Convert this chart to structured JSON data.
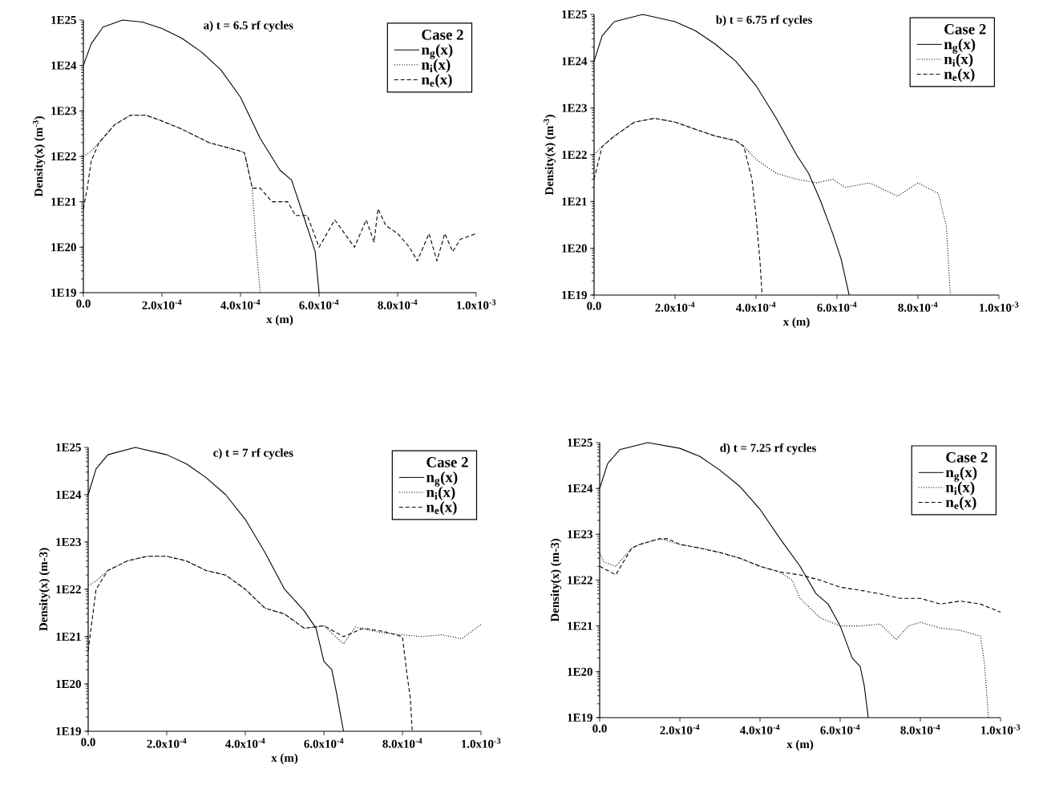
{
  "chart_data": [
    {
      "type": "line",
      "title": "a) t = 6.5 rf cycles",
      "xlabel": "x (m)",
      "ylabel": "Density(x)  (m$^{-3}$)",
      "legend_title": "Case 2",
      "legend": "top right",
      "log": "y",
      "xlim": [
        0,
        0.001
      ],
      "ylim": [
        1e+19,
        1e+25
      ],
      "xticks": [
        {
          "value": 0,
          "label": "0.0"
        },
        {
          "value": 0.0002,
          "label": "2.0x10$^{-4}$"
        },
        {
          "value": 0.0004,
          "label": "4.0x10$^{-4}$"
        },
        {
          "value": 0.0006,
          "label": "6.0x10$^{-4}$"
        },
        {
          "value": 0.0008,
          "label": "8.0x10$^{-4}$"
        },
        {
          "value": 0.001,
          "label": "1.0x10$^{-3}$"
        }
      ],
      "yticks": [
        {
          "value": 1e+19,
          "label": "1E19"
        },
        {
          "value": 1e+20,
          "label": "1E20"
        },
        {
          "value": 1e+21,
          "label": "1E21"
        },
        {
          "value": 1e+22,
          "label": "1E22"
        },
        {
          "value": 1e+23,
          "label": "1E23"
        },
        {
          "value": 1e+24,
          "label": "1E24"
        },
        {
          "value": 1e+25,
          "label": "1E25"
        }
      ],
      "series": [
        {
          "name": "n$_{g}$(x)",
          "color": "#000000",
          "line_style": "solid",
          "x": [
            0,
            2e-05,
            5e-05,
            0.0001,
            0.00015,
            0.0002,
            0.00025,
            0.0003,
            0.00035,
            0.0004,
            0.00045,
            0.0005,
            0.00053,
            0.00056,
            0.00058,
            0.00059,
            0.0006
          ],
          "values": [
            1e+24,
            3e+24,
            7e+24,
            1e+25,
            9e+24,
            6.5e+24,
            4e+24,
            2e+24,
            8e+23,
            2e+23,
            2.5e+22,
            5e+21,
            3e+21,
            5e+20,
            1.5e+20,
            8e+19,
            1e+19
          ]
        },
        {
          "name": "n$_{i}$(x)",
          "color": "#000000",
          "line_style": "dotted",
          "x": [
            0,
            2e-05,
            4e-05,
            8e-05,
            0.00012,
            0.00016,
            0.0002,
            0.00025,
            0.00032,
            0.0004,
            0.00041,
            0.00043,
            0.00044,
            0.00045
          ],
          "values": [
            1e+22,
            1.3e+22,
            2e+22,
            5e+22,
            8e+22,
            8e+22,
            6e+22,
            4e+22,
            2e+22,
            1.3e+22,
            1.2e+22,
            2e+21,
            1e+20,
            1e+19
          ]
        },
        {
          "name": "n$_{e}$(x)",
          "color": "#000000",
          "line_style": "dashed",
          "x": [
            0,
            1e-05,
            2e-05,
            4e-05,
            8e-05,
            0.00012,
            0.00016,
            0.0002,
            0.00025,
            0.00032,
            0.0004,
            0.00041,
            0.00043,
            0.00045,
            0.00048,
            0.00052,
            0.00054,
            0.00057,
            0.0006,
            0.00064,
            0.00069,
            0.00072,
            0.00074,
            0.00075,
            0.00077,
            0.0008,
            0.00083,
            0.00085,
            0.00088,
            0.0009,
            0.00092,
            0.00094,
            0.00096,
            0.001
          ],
          "values": [
            7e+20,
            2e+21,
            8e+21,
            2e+22,
            5e+22,
            8e+22,
            8e+22,
            6e+22,
            4e+22,
            2e+22,
            1.3e+22,
            1.2e+22,
            2e+21,
            2e+21,
            1e+21,
            1e+21,
            5e+20,
            5e+20,
            1e+20,
            4e+20,
            1e+20,
            4e+20,
            1.3e+20,
            7e+20,
            3e+20,
            2e+20,
            1e+20,
            5e+19,
            2e+20,
            5e+19,
            2e+20,
            8e+19,
            1.5e+20,
            2e+20
          ]
        }
      ]
    },
    {
      "type": "line",
      "title": "b) t = 6.75 rf cycles",
      "xlabel": "x (m)",
      "ylabel": "Density(x)  (m$^{-3}$)",
      "legend_title": "Case 2",
      "legend": "top right",
      "log": "y",
      "xlim": [
        0,
        0.001
      ],
      "ylim": [
        1e+19,
        1e+25
      ],
      "xticks": [
        {
          "value": 0,
          "label": "0.0"
        },
        {
          "value": 0.0002,
          "label": "2.0x10$^{-4}$"
        },
        {
          "value": 0.0004,
          "label": "4.0x10$^{-4}$"
        },
        {
          "value": 0.0006,
          "label": "6.0x10$^{-4}$"
        },
        {
          "value": 0.0008,
          "label": "8.0x10$^{-4}$"
        },
        {
          "value": 0.001,
          "label": "1.0x10$^{-3}$"
        }
      ],
      "yticks": [
        {
          "value": 1e+19,
          "label": "1E19"
        },
        {
          "value": 1e+20,
          "label": "1E20"
        },
        {
          "value": 1e+21,
          "label": "1E21"
        },
        {
          "value": 1e+22,
          "label": "1E22"
        },
        {
          "value": 1e+23,
          "label": "1E23"
        },
        {
          "value": 1e+24,
          "label": "1E24"
        },
        {
          "value": 1e+25,
          "label": "1E25"
        }
      ],
      "series": [
        {
          "name": "n$_{g}$(x)",
          "color": "#000000",
          "line_style": "solid",
          "x": [
            0,
            2e-05,
            5e-05,
            0.00012,
            0.0002,
            0.00025,
            0.0003,
            0.00035,
            0.0004,
            0.00045,
            0.0005,
            0.00053,
            0.00056,
            0.00059,
            0.00061,
            0.00063
          ],
          "values": [
            1e+24,
            3.5e+24,
            7e+24,
            1e+25,
            7e+24,
            4.5e+24,
            2.3e+24,
            1e+24,
            3e+23,
            6e+22,
            1e+22,
            4e+21,
            1e+21,
            2e+20,
            6e+19,
            1e+19
          ]
        },
        {
          "name": "n$_{i}$(x)",
          "color": "#000000",
          "line_style": "dotted",
          "x": [
            0,
            2e-05,
            5e-05,
            0.0001,
            0.00015,
            0.0002,
            0.00025,
            0.0003,
            0.00035,
            0.00037,
            0.0004,
            0.00045,
            0.0005,
            0.00055,
            0.00059,
            0.00062,
            0.00068,
            0.00075,
            0.0008,
            0.00085,
            0.00087,
            0.00088
          ],
          "values": [
            1e+22,
            1.5e+22,
            2.5e+22,
            5e+22,
            6e+22,
            5e+22,
            3.5e+22,
            2.5e+22,
            2e+22,
            1.5e+22,
            8e+21,
            4e+21,
            3e+21,
            2.5e+21,
            3e+21,
            2e+21,
            2.5e+21,
            1.3e+21,
            2.5e+21,
            1.5e+21,
            3e+20,
            1e+19
          ]
        },
        {
          "name": "n$_{e}$(x)",
          "color": "#000000",
          "line_style": "dashed",
          "x": [
            0,
            2e-05,
            5e-05,
            0.0001,
            0.00015,
            0.0002,
            0.00025,
            0.0003,
            0.00035,
            0.00037,
            0.00039,
            0.0004,
            0.00041,
            0.000415
          ],
          "values": [
            3e+21,
            1.5e+22,
            2.5e+22,
            5e+22,
            6e+22,
            5e+22,
            3.5e+22,
            2.5e+22,
            2e+22,
            1.5e+22,
            3e+21,
            5e+20,
            5e+19,
            1e+19
          ]
        }
      ]
    },
    {
      "type": "line",
      "title": "c) t = 7 rf cycles",
      "xlabel": "x (m)",
      "ylabel": "Density(x) (m-3)",
      "legend_title": "Case 2",
      "legend": "top right",
      "log": "y",
      "xlim": [
        0,
        0.001
      ],
      "ylim": [
        1e+19,
        1e+25
      ],
      "xticks": [
        {
          "value": 0,
          "label": "0.0"
        },
        {
          "value": 0.0002,
          "label": "2.0x10$^{-4}$"
        },
        {
          "value": 0.0004,
          "label": "4.0x10$^{-4}$"
        },
        {
          "value": 0.0006,
          "label": "6.0x10$^{-4}$"
        },
        {
          "value": 0.0008,
          "label": "8.0x10$^{-4}$"
        },
        {
          "value": 0.001,
          "label": "1.0x10$^{-3}$"
        }
      ],
      "yticks": [
        {
          "value": 1e+19,
          "label": "1E19"
        },
        {
          "value": 1e+20,
          "label": "1E20"
        },
        {
          "value": 1e+21,
          "label": "1E21"
        },
        {
          "value": 1e+22,
          "label": "1E22"
        },
        {
          "value": 1e+23,
          "label": "1E23"
        },
        {
          "value": 1e+24,
          "label": "1E24"
        },
        {
          "value": 1e+25,
          "label": "1E25"
        }
      ],
      "series": [
        {
          "name": "n$_{g}$(x)",
          "color": "#000000",
          "line_style": "solid",
          "x": [
            0,
            2e-05,
            5e-05,
            0.00012,
            0.0002,
            0.00025,
            0.0003,
            0.00035,
            0.0004,
            0.00045,
            0.0005,
            0.00055,
            0.00058,
            0.0006,
            0.00062,
            0.00063,
            0.00065
          ],
          "values": [
            1e+24,
            3.5e+24,
            7e+24,
            1e+25,
            7e+24,
            4.5e+24,
            2.3e+24,
            1e+24,
            3e+23,
            6e+22,
            1e+22,
            3.5e+21,
            1.5e+21,
            3e+20,
            2e+20,
            8e+19,
            1e+19
          ]
        },
        {
          "name": "n$_{i}$(x)",
          "color": "#000000",
          "line_style": "dotted",
          "x": [
            0,
            2e-05,
            5e-05,
            0.0001,
            0.00015,
            0.0002,
            0.00025,
            0.0003,
            0.00035,
            0.0004,
            0.00045,
            0.0005,
            0.00055,
            0.0006,
            0.00065,
            0.00068,
            0.00075,
            0.00085,
            0.0009,
            0.00095,
            0.001
          ],
          "values": [
            1.2e+22,
            1.5e+22,
            2.5e+22,
            4e+22,
            5e+22,
            5e+22,
            4e+22,
            2.5e+22,
            2e+22,
            1e+22,
            4e+21,
            3e+21,
            1.5e+21,
            1.7e+21,
            7e+20,
            1.6e+21,
            1.2e+21,
            1e+21,
            1.1e+21,
            9e+20,
            1.8e+21
          ]
        },
        {
          "name": "n$_{e}$(x)",
          "color": "#000000",
          "line_style": "dashed",
          "x": [
            0,
            2e-05,
            5e-05,
            0.0001,
            0.00015,
            0.0002,
            0.00025,
            0.0003,
            0.00035,
            0.0004,
            0.00045,
            0.0005,
            0.00055,
            0.0006,
            0.00065,
            0.0007,
            0.00075,
            0.0008,
            0.00081,
            0.00082,
            0.000825
          ],
          "values": [
            5e+20,
            1e+22,
            2.5e+22,
            4e+22,
            5e+22,
            5e+22,
            4e+22,
            2.5e+22,
            2e+22,
            1e+22,
            4e+21,
            3e+21,
            1.5e+21,
            1.7e+21,
            1e+21,
            1.5e+21,
            1.3e+21,
            1e+21,
            2e+20,
            5e+19,
            1e+19
          ]
        }
      ]
    },
    {
      "type": "line",
      "title": "d) t = 7.25 rf cycles",
      "xlabel": "x (m)",
      "ylabel": "Density(x)  (m-3)",
      "legend_title": "Case 2",
      "legend": "top right",
      "log": "y",
      "xlim": [
        0,
        0.001
      ],
      "ylim": [
        1e+19,
        1e+25
      ],
      "xticks": [
        {
          "value": 0,
          "label": "0.0"
        },
        {
          "value": 0.0002,
          "label": "2.0x10$^{-4}$"
        },
        {
          "value": 0.0004,
          "label": "4.0x10$^{-4}$"
        },
        {
          "value": 0.0006,
          "label": "6.0x10$^{-4}$"
        },
        {
          "value": 0.0008,
          "label": "8.0x10$^{-4}$"
        },
        {
          "value": 0.001,
          "label": "1.0x10$^{-3}$"
        }
      ],
      "yticks": [
        {
          "value": 1e+19,
          "label": "1E19"
        },
        {
          "value": 1e+20,
          "label": "1E20"
        },
        {
          "value": 1e+21,
          "label": "1E21"
        },
        {
          "value": 1e+22,
          "label": "1E22"
        },
        {
          "value": 1e+23,
          "label": "1E23"
        },
        {
          "value": 1e+24,
          "label": "1E24"
        },
        {
          "value": 1e+25,
          "label": "1E25"
        }
      ],
      "series": [
        {
          "name": "n$_{g}$(x)",
          "color": "#000000",
          "line_style": "solid",
          "x": [
            0,
            2e-05,
            5e-05,
            0.00012,
            0.0002,
            0.00025,
            0.0003,
            0.00035,
            0.0004,
            0.00045,
            0.0005,
            0.00054,
            0.00057,
            0.0006,
            0.00063,
            0.00065,
            0.00066,
            0.00067
          ],
          "values": [
            1e+24,
            3.5e+24,
            7e+24,
            1e+25,
            7.5e+24,
            5e+24,
            2.5e+24,
            1.1e+24,
            3.5e+23,
            8e+22,
            2e+22,
            5e+21,
            3e+21,
            1e+21,
            2e+20,
            1.3e+20,
            5e+19,
            1e+19
          ]
        },
        {
          "name": "n$_{i}$(x)",
          "color": "#000000",
          "line_style": "dotted",
          "x": [
            0,
            1e-05,
            4e-05,
            8e-05,
            0.0001,
            0.00015,
            0.0002,
            0.00025,
            0.0003,
            0.00035,
            0.0004,
            0.00045,
            0.00048,
            0.0005,
            0.00055,
            0.0006,
            0.00065,
            0.0007,
            0.00074,
            0.00077,
            0.0008,
            0.00085,
            0.0009,
            0.00095,
            0.00096,
            0.00097
          ],
          "values": [
            4e+22,
            2.5e+22,
            2e+22,
            5e+22,
            6e+22,
            8e+22,
            6e+22,
            5e+22,
            4e+22,
            3e+22,
            2e+22,
            1.5e+22,
            1e+22,
            4e+21,
            1.5e+21,
            1e+21,
            1e+21,
            1.1e+21,
            5e+20,
            1e+21,
            1.2e+21,
            9e+20,
            8e+20,
            6e+20,
            1.5e+20,
            1e+19
          ]
        },
        {
          "name": "n$_{e}$(x)",
          "color": "#000000",
          "line_style": "dashed",
          "x": [
            0,
            1e-05,
            4e-05,
            8e-05,
            0.0001,
            0.00015,
            0.00017,
            0.0002,
            0.00025,
            0.0003,
            0.00035,
            0.0004,
            0.00045,
            0.0005,
            0.00055,
            0.0006,
            0.00065,
            0.0007,
            0.00075,
            0.0008,
            0.00085,
            0.0009,
            0.00095,
            0.001
          ],
          "values": [
            2e+22,
            1.8e+22,
            1.3e+22,
            5e+22,
            6e+22,
            8e+22,
            8e+22,
            6e+22,
            5e+22,
            4e+22,
            3e+22,
            2e+22,
            1.5e+22,
            1.3e+22,
            1e+22,
            7e+21,
            6e+21,
            5e+21,
            4e+21,
            4e+21,
            3e+21,
            3.5e+21,
            3e+21,
            2e+21
          ]
        }
      ]
    }
  ]
}
